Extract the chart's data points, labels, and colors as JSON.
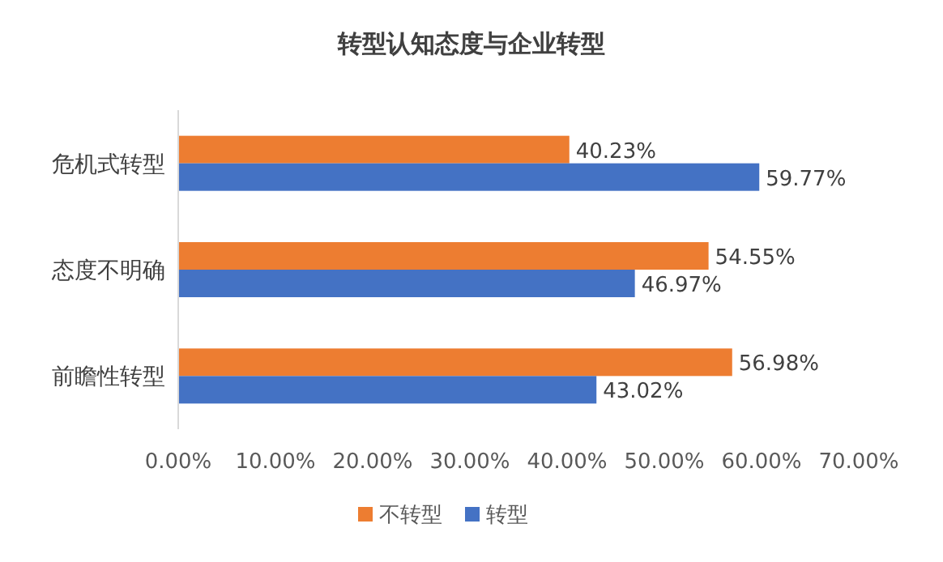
{
  "chart_data": {
    "type": "bar",
    "orientation": "horizontal",
    "title": "转型认知态度与企业转型",
    "categories": [
      "危机式转型",
      "态度不明确",
      "前瞻性转型"
    ],
    "series": [
      {
        "name": "不转型",
        "color": "#ed7d31",
        "values": [
          40.23,
          54.55,
          56.98
        ],
        "value_labels": [
          "40.23%",
          "54.55%",
          "56.98%"
        ]
      },
      {
        "name": "转型",
        "color": "#4472c4",
        "values": [
          59.77,
          46.97,
          43.02
        ],
        "value_labels": [
          "59.77%",
          "46.97%",
          "43.02%"
        ]
      }
    ],
    "xlim": [
      0,
      70
    ],
    "xticks": [
      {
        "value": 0,
        "label": "0.00%"
      },
      {
        "value": 10,
        "label": "10.00%"
      },
      {
        "value": 20,
        "label": "20.00%"
      },
      {
        "value": 30,
        "label": "30.00%"
      },
      {
        "value": 40,
        "label": "40.00%"
      },
      {
        "value": 50,
        "label": "50.00%"
      },
      {
        "value": 60,
        "label": "60.00%"
      },
      {
        "value": 70,
        "label": "70.00%"
      }
    ],
    "legend": "bottom"
  }
}
